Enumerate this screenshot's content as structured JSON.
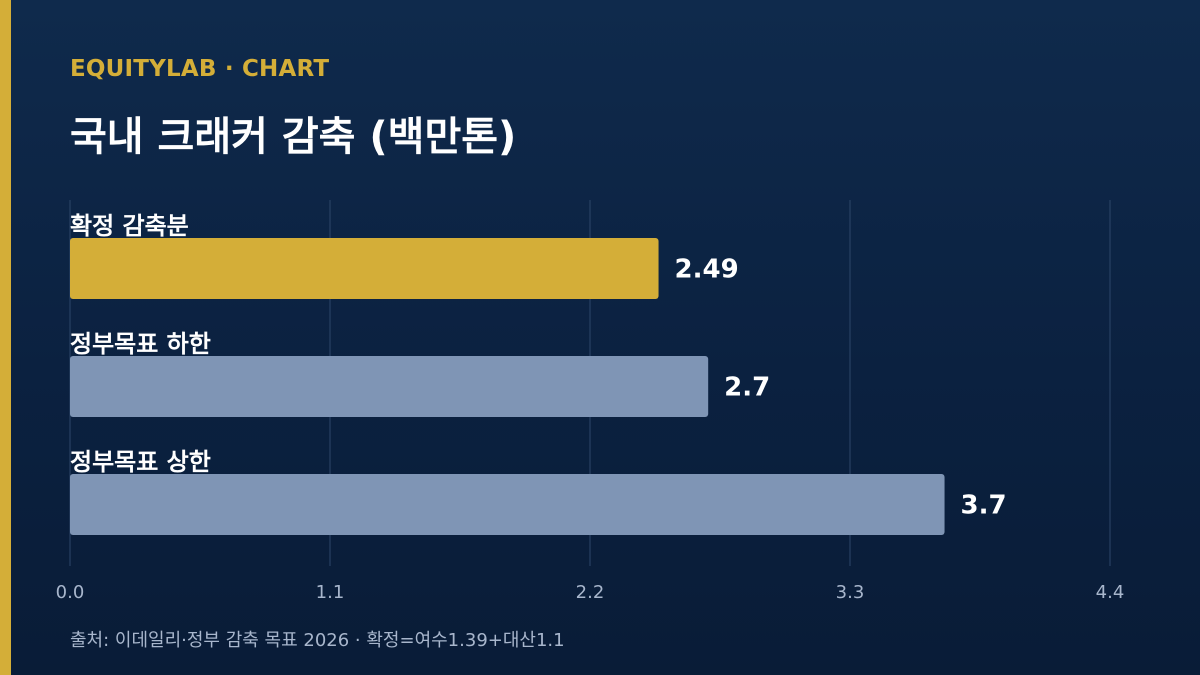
{
  "brand": {
    "label": "EQUITYLAB · CHART",
    "color": "#d4ae38"
  },
  "title": "국내 크래커 감축 (백만톤)",
  "source": "출처: 이데일리·정부 감축 목표 2026 · 확정=여수1.39+대산1.1",
  "colors": {
    "accent": "#d4ae38",
    "bar_primary": "#d4ae38",
    "bar_secondary": "#7f95b5",
    "gridline": "#2d4669",
    "tick_text": "#a8b6cc",
    "label_text": "#ffffff"
  },
  "chart_data": {
    "type": "bar",
    "orientation": "horizontal",
    "title": "국내 크래커 감축 (백만톤)",
    "categories": [
      "확정 감축분",
      "정부목표 하한",
      "정부목표 상한"
    ],
    "values": [
      2.49,
      2.7,
      3.7
    ],
    "value_labels": [
      "2.49",
      "2.7",
      "3.7"
    ],
    "highlight": [
      true,
      false,
      false
    ],
    "xlim": [
      0,
      4.4
    ],
    "xticks": [
      0.0,
      1.1,
      2.2,
      3.3,
      4.4
    ],
    "xtick_labels": [
      "0.0",
      "1.1",
      "2.2",
      "3.3",
      "4.4"
    ],
    "grid": true,
    "xlabel": "",
    "ylabel": ""
  }
}
